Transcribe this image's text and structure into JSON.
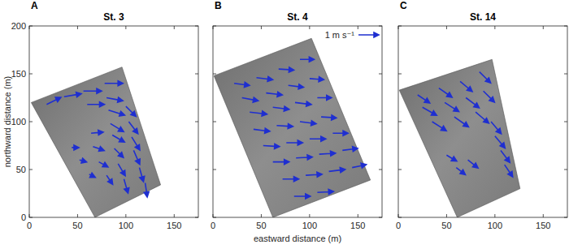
{
  "chart_data": [
    {
      "type": "quiver",
      "panel_label": "A",
      "title": "St. 3",
      "ylabel": "northward distance (m)",
      "tick_labels": true,
      "xlim": [
        0,
        175
      ],
      "ylim": [
        0,
        200
      ],
      "xticks": [
        0,
        50,
        100,
        150
      ],
      "yticks": [
        0,
        50,
        100,
        150,
        200
      ],
      "color": "#1f2fd0",
      "image_footprint": {
        "x": [
          2,
          96,
          136,
          68
        ],
        "y": [
          120,
          157,
          34,
          0
        ]
      },
      "x": [
        18,
        36,
        56,
        78,
        60,
        80,
        82,
        100,
        84,
        103,
        64,
        86,
        106,
        44,
        66,
        88,
        108,
        52,
        72,
        92,
        114,
        62,
        80,
        98,
        120
      ],
      "y": [
        118,
        126,
        132,
        140,
        118,
        125,
        112,
        116,
        98,
        100,
        88,
        86,
        84,
        73,
        74,
        72,
        70,
        60,
        58,
        56,
        52,
        45,
        44,
        40,
        36
      ],
      "u": [
        0.7,
        0.85,
        0.9,
        0.9,
        0.85,
        0.8,
        0.8,
        0.5,
        0.65,
        0.45,
        0.6,
        0.6,
        0.4,
        0.35,
        0.55,
        0.45,
        0.3,
        0.35,
        0.45,
        0.35,
        0.2,
        0.3,
        0.3,
        0.2,
        0.1
      ],
      "v": [
        0.35,
        0.15,
        0.0,
        0.0,
        0.0,
        -0.15,
        -0.25,
        -0.5,
        -0.4,
        -0.6,
        0.05,
        -0.35,
        -0.65,
        0.0,
        -0.2,
        -0.45,
        -0.7,
        -0.1,
        -0.25,
        -0.6,
        -0.7,
        -0.15,
        -0.45,
        -0.7,
        -0.7
      ]
    },
    {
      "type": "quiver",
      "panel_label": "B",
      "title": "St. 4",
      "xlabel": "eastward distance (m)",
      "tick_labels": "x",
      "xlim": [
        0,
        175
      ],
      "ylim": [
        0,
        200
      ],
      "xticks": [
        0,
        50,
        100,
        150
      ],
      "yticks": [
        0,
        50,
        100,
        150,
        200
      ],
      "color": "#1f2fd0",
      "reference": {
        "value": 1,
        "label": "1 m s⁻¹"
      },
      "image_footprint": {
        "x": [
          1,
          102,
          163,
          62
        ],
        "y": [
          148,
          187,
          39,
          0
        ]
      },
      "x": [
        22,
        45,
        68,
        90,
        30,
        55,
        78,
        100,
        38,
        62,
        85,
        108,
        42,
        66,
        90,
        112,
        52,
        76,
        100,
        124,
        62,
        86,
        110,
        134,
        72,
        96,
        120,
        144,
        84,
        108
      ],
      "y": [
        140,
        146,
        155,
        165,
        125,
        130,
        138,
        145,
        110,
        115,
        120,
        125,
        92,
        96,
        100,
        105,
        75,
        78,
        82,
        88,
        58,
        62,
        66,
        70,
        40,
        44,
        48,
        52,
        22,
        26
      ],
      "u": [
        0.75,
        0.8,
        0.75,
        0.7,
        0.8,
        0.8,
        0.75,
        0.7,
        0.85,
        0.8,
        0.8,
        0.7,
        0.8,
        0.8,
        0.8,
        0.75,
        0.8,
        0.8,
        0.8,
        0.75,
        0.8,
        0.8,
        0.8,
        0.75,
        0.8,
        0.8,
        0.8,
        0.7,
        0.8,
        0.8
      ],
      "v": [
        -0.1,
        -0.1,
        -0.05,
        0.0,
        -0.15,
        -0.1,
        -0.1,
        -0.05,
        -0.1,
        -0.1,
        -0.1,
        0.0,
        -0.1,
        -0.05,
        -0.1,
        -0.05,
        -0.05,
        0.0,
        0.0,
        0.0,
        0.0,
        0.05,
        0.05,
        0.1,
        0.0,
        0.05,
        0.1,
        0.15,
        0.0,
        0.05
      ]
    },
    {
      "type": "quiver",
      "panel_label": "C",
      "title": "St. 14",
      "tick_labels": "x",
      "xlim": [
        0,
        175
      ],
      "ylim": [
        0,
        200
      ],
      "xticks": [
        0,
        50,
        100,
        150
      ],
      "yticks": [
        0,
        50,
        100,
        150,
        200
      ],
      "color": "#1f2fd0",
      "image_footprint": {
        "x": [
          1,
          97,
          126,
          61
        ],
        "y": [
          133,
          165,
          30,
          0
        ]
      },
      "x": [
        20,
        42,
        64,
        84,
        25,
        48,
        70,
        88,
        35,
        58,
        80,
        96,
        100,
        106,
        110,
        50,
        60,
        72
      ],
      "y": [
        128,
        135,
        142,
        152,
        115,
        120,
        125,
        132,
        100,
        105,
        110,
        100,
        85,
        70,
        55,
        65,
        52,
        60
      ],
      "u": [
        0.6,
        0.65,
        0.6,
        0.55,
        0.7,
        0.7,
        0.65,
        0.55,
        0.7,
        0.7,
        0.65,
        0.5,
        0.5,
        0.45,
        0.4,
        0.5,
        0.45,
        0.5
      ],
      "v": [
        -0.4,
        -0.45,
        -0.5,
        -0.55,
        -0.4,
        -0.45,
        -0.5,
        -0.55,
        -0.45,
        -0.5,
        -0.55,
        -0.6,
        -0.6,
        -0.6,
        -0.6,
        -0.3,
        -0.35,
        -0.4
      ]
    }
  ]
}
